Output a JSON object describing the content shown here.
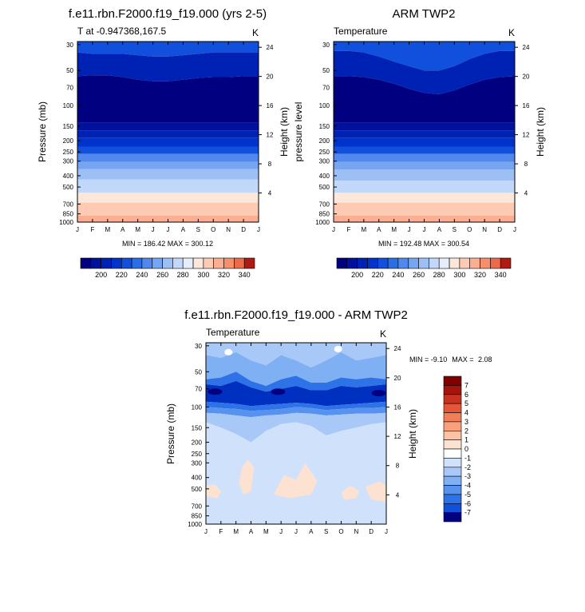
{
  "colors": {
    "temp_palette": [
      "#000080",
      "#00129c",
      "#0022b4",
      "#0033cc",
      "#1050dc",
      "#2a6ee6",
      "#5088ee",
      "#76a6f2",
      "#9cc0f6",
      "#c2d8fa",
      "#e6eefc",
      "#fde6da",
      "#fdcbb4",
      "#fbae92",
      "#f58f6c",
      "#ea6a4a",
      "#d4402c",
      "#b01a14",
      "#800000"
    ],
    "diff_palette": [
      "#000080",
      "#0016a2",
      "#0030c0",
      "#1250dc",
      "#2e72e8",
      "#5692ee",
      "#80b0f4",
      "#a8c8f8",
      "#d0e2fb",
      "#ffffff",
      "#fde2d2",
      "#fbc2a4",
      "#f8a07c",
      "#f07e58",
      "#e45638",
      "#c8321e",
      "#a4140c",
      "#800000"
    ]
  },
  "charts": [
    {
      "id": "model",
      "title": "f.e11.rbn.F2000.f19_f19.000 (yrs 2-5)",
      "subtitle_left": "T at -0.947368,167.5",
      "subtitle_right": "K",
      "ylabel_left": "Pressure (mb)",
      "ylabel_right": "Height (km)",
      "stats": "MIN = 186.42 MAX = 300.12"
    },
    {
      "id": "obs",
      "title": "ARM TWP2",
      "subtitle_left": "Temperature",
      "subtitle_right": "K",
      "ylabel_left": "pressure level",
      "ylabel_right": "Height (km)",
      "stats": "MIN = 192.48 MAX = 300.54"
    },
    {
      "id": "diff",
      "title": "f.e11.rbn.F2000.f19_f19.000 - ARM TWP2",
      "subtitle_left": "Temperature",
      "subtitle_right": "K",
      "ylabel_left": "Pressure (mb)",
      "ylabel_right": "Height (km)",
      "stats_min_label": "MIN = ",
      "stats_min_value": "-9.10",
      "stats_max_label": "MAX = ",
      "stats_max_value": "2.08"
    }
  ],
  "chart_data": [
    {
      "type": "heatmap",
      "name": "model_temperature",
      "x": [
        "J",
        "F",
        "M",
        "A",
        "M",
        "J",
        "J",
        "A",
        "S",
        "O",
        "N",
        "D",
        "J"
      ],
      "y_pressure_mb": [
        30,
        50,
        70,
        100,
        150,
        200,
        250,
        300,
        400,
        500,
        700,
        850,
        1000
      ],
      "y_height_km_ticks": [
        24,
        20,
        16,
        12,
        8,
        4
      ],
      "levels": [
        200,
        220,
        240,
        260,
        280,
        300,
        320,
        340
      ],
      "min": 186.42,
      "max": 300.12,
      "units": "K"
    },
    {
      "type": "heatmap",
      "name": "obs_temperature",
      "x": [
        "J",
        "F",
        "M",
        "A",
        "M",
        "J",
        "J",
        "A",
        "S",
        "O",
        "N",
        "D",
        "J"
      ],
      "y_pressure_mb": [
        30,
        50,
        70,
        100,
        150,
        200,
        250,
        300,
        400,
        500,
        700,
        850,
        1000
      ],
      "y_height_km_ticks": [
        24,
        20,
        16,
        12,
        8,
        4
      ],
      "levels": [
        200,
        220,
        240,
        260,
        280,
        300,
        320,
        340
      ],
      "min": 192.48,
      "max": 300.54,
      "units": "K"
    },
    {
      "type": "heatmap",
      "name": "difference_temperature",
      "x": [
        "J",
        "F",
        "M",
        "A",
        "M",
        "J",
        "J",
        "A",
        "S",
        "O",
        "N",
        "D",
        "J"
      ],
      "y_pressure_mb": [
        30,
        50,
        70,
        100,
        150,
        200,
        250,
        300,
        400,
        500,
        700,
        850,
        1000
      ],
      "y_height_km_ticks": [
        24,
        20,
        16,
        12,
        8,
        4
      ],
      "levels": [
        7,
        6,
        5,
        4,
        3,
        2,
        1,
        0,
        -1,
        -2,
        -3,
        -4,
        -5,
        -6,
        -7
      ],
      "min": -9.1,
      "max": 2.08,
      "units": "K"
    }
  ],
  "colorbar_labels": [
    "200",
    "220",
    "240",
    "260",
    "280",
    "300",
    "320",
    "340"
  ],
  "diff_colorbar_labels": [
    "7",
    "6",
    "5",
    "4",
    "3",
    "2",
    "1",
    "0",
    "-1",
    "-2",
    "-3",
    "-4",
    "-5",
    "-6",
    "-7"
  ]
}
